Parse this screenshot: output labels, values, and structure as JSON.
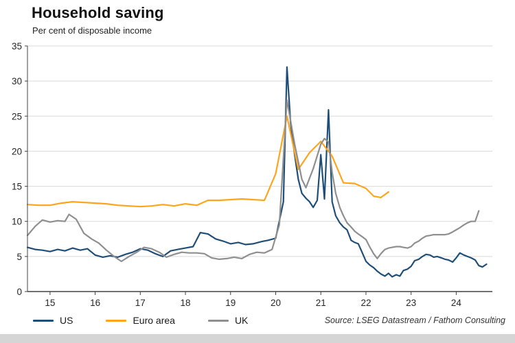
{
  "page": {
    "title": "Household saving",
    "subtitle": "Per cent of disposable income",
    "source": "Source: LSEG Datastream / Fathom Consulting"
  },
  "chart_data": {
    "type": "line",
    "title": "Household saving",
    "ylabel": "Per cent of disposable income",
    "x_domain": [
      2014.5,
      2024.8
    ],
    "ylim": [
      0,
      35
    ],
    "y_ticks": [
      0,
      5,
      10,
      15,
      20,
      25,
      30,
      35
    ],
    "x_ticks": [
      {
        "value": 2015,
        "label": "15"
      },
      {
        "value": 2016,
        "label": "16"
      },
      {
        "value": 2017,
        "label": "17"
      },
      {
        "value": 2018,
        "label": "18"
      },
      {
        "value": 2019,
        "label": "19"
      },
      {
        "value": 2020,
        "label": "20"
      },
      {
        "value": 2021,
        "label": "21"
      },
      {
        "value": 2022,
        "label": "22"
      },
      {
        "value": 2023,
        "label": "23"
      },
      {
        "value": 2024,
        "label": "24"
      }
    ],
    "grid": "horizontal",
    "legend_position": "bottom-left",
    "grid_color": "#d9d9d9",
    "axis_color": "#404040",
    "series": [
      {
        "name": "US",
        "color": "#1f4e79",
        "x": [
          2014.5,
          2014.67,
          2014.83,
          2015.0,
          2015.17,
          2015.33,
          2015.5,
          2015.67,
          2015.83,
          2016.0,
          2016.17,
          2016.33,
          2016.5,
          2016.67,
          2016.83,
          2017.0,
          2017.17,
          2017.33,
          2017.5,
          2017.67,
          2017.83,
          2018.0,
          2018.17,
          2018.33,
          2018.5,
          2018.67,
          2018.83,
          2019.0,
          2019.17,
          2019.33,
          2019.5,
          2019.67,
          2019.83,
          2020.0,
          2020.17,
          2020.25,
          2020.33,
          2020.42,
          2020.5,
          2020.58,
          2020.67,
          2020.75,
          2020.83,
          2020.92,
          2021.0,
          2021.08,
          2021.17,
          2021.25,
          2021.33,
          2021.42,
          2021.5,
          2021.58,
          2021.67,
          2021.75,
          2021.83,
          2021.92,
          2022.0,
          2022.08,
          2022.17,
          2022.25,
          2022.33,
          2022.42,
          2022.5,
          2022.58,
          2022.67,
          2022.75,
          2022.83,
          2022.92,
          2023.0,
          2023.08,
          2023.17,
          2023.25,
          2023.33,
          2023.42,
          2023.5,
          2023.58,
          2023.67,
          2023.75,
          2023.83,
          2023.92,
          2024.0,
          2024.08,
          2024.17,
          2024.25,
          2024.33,
          2024.42,
          2024.5,
          2024.58,
          2024.67
        ],
        "values": [
          6.3,
          6.0,
          5.9,
          5.7,
          6.0,
          5.8,
          6.2,
          5.9,
          6.1,
          5.2,
          4.9,
          5.1,
          4.9,
          5.3,
          5.6,
          6.1,
          5.9,
          5.4,
          5.0,
          5.8,
          6.0,
          6.2,
          6.4,
          8.4,
          8.2,
          7.5,
          7.2,
          6.8,
          7.0,
          6.7,
          6.8,
          7.1,
          7.3,
          7.6,
          12.8,
          32.0,
          24.0,
          19.5,
          16.0,
          14.0,
          13.3,
          12.8,
          12.0,
          13.0,
          19.5,
          13.2,
          25.9,
          12.8,
          10.8,
          9.8,
          9.2,
          8.8,
          7.3,
          7.0,
          6.8,
          5.5,
          4.3,
          3.8,
          3.4,
          2.9,
          2.5,
          2.2,
          2.6,
          2.1,
          2.4,
          2.2,
          3.0,
          3.2,
          3.6,
          4.4,
          4.6,
          5.0,
          5.3,
          5.2,
          4.9,
          5.0,
          4.8,
          4.6,
          4.5,
          4.2,
          4.8,
          5.5,
          5.2,
          5.0,
          4.8,
          4.5,
          3.7,
          3.5,
          3.9
        ]
      },
      {
        "name": "Euro area",
        "color": "#ffa41b",
        "x": [
          2014.5,
          2014.75,
          2015.0,
          2015.25,
          2015.5,
          2015.75,
          2016.0,
          2016.25,
          2016.5,
          2016.75,
          2017.0,
          2017.25,
          2017.5,
          2017.75,
          2018.0,
          2018.25,
          2018.5,
          2018.75,
          2019.0,
          2019.25,
          2019.5,
          2019.75,
          2020.0,
          2020.25,
          2020.5,
          2020.75,
          2021.0,
          2021.25,
          2021.5,
          2021.75,
          2022.0,
          2022.17,
          2022.33,
          2022.5
        ],
        "values": [
          12.4,
          12.3,
          12.3,
          12.6,
          12.8,
          12.7,
          12.6,
          12.5,
          12.3,
          12.2,
          12.1,
          12.2,
          12.4,
          12.2,
          12.5,
          12.3,
          13.0,
          13.0,
          13.1,
          13.2,
          13.1,
          13.0,
          16.8,
          25.0,
          17.4,
          19.8,
          21.4,
          19.3,
          15.5,
          15.4,
          14.7,
          13.6,
          13.4,
          14.2
        ]
      },
      {
        "name": "UK",
        "color": "#8f8f8f",
        "x": [
          2014.5,
          2014.67,
          2014.83,
          2015.0,
          2015.17,
          2015.33,
          2015.42,
          2015.58,
          2015.75,
          2015.92,
          2016.08,
          2016.25,
          2016.42,
          2016.58,
          2016.75,
          2016.92,
          2017.08,
          2017.25,
          2017.42,
          2017.58,
          2017.75,
          2017.92,
          2018.08,
          2018.25,
          2018.42,
          2018.58,
          2018.75,
          2018.92,
          2019.08,
          2019.25,
          2019.42,
          2019.58,
          2019.75,
          2019.92,
          2020.08,
          2020.25,
          2020.42,
          2020.58,
          2020.67,
          2020.83,
          2021.0,
          2021.08,
          2021.17,
          2021.25,
          2021.33,
          2021.42,
          2021.5,
          2021.58,
          2021.67,
          2021.75,
          2021.83,
          2021.92,
          2022.0,
          2022.08,
          2022.17,
          2022.25,
          2022.33,
          2022.42,
          2022.5,
          2022.58,
          2022.67,
          2022.75,
          2022.83,
          2022.92,
          2023.0,
          2023.08,
          2023.17,
          2023.25,
          2023.33,
          2023.42,
          2023.5,
          2023.58,
          2023.67,
          2023.75,
          2023.83,
          2023.92,
          2024.0,
          2024.08,
          2024.17,
          2024.25,
          2024.33,
          2024.42,
          2024.5
        ],
        "values": [
          8.0,
          9.3,
          10.2,
          9.9,
          10.1,
          10.0,
          11.0,
          10.3,
          8.3,
          7.5,
          6.9,
          5.9,
          5.0,
          4.3,
          5.0,
          5.6,
          6.3,
          6.1,
          5.6,
          4.9,
          5.3,
          5.6,
          5.5,
          5.5,
          5.4,
          4.8,
          4.6,
          4.7,
          4.9,
          4.7,
          5.3,
          5.6,
          5.5,
          6.0,
          9.5,
          27.3,
          21.0,
          16.0,
          14.8,
          17.5,
          21.0,
          21.8,
          21.3,
          17.0,
          14.0,
          12.0,
          10.8,
          9.8,
          9.2,
          8.6,
          8.2,
          7.8,
          7.4,
          6.4,
          5.4,
          4.7,
          5.4,
          6.0,
          6.2,
          6.3,
          6.4,
          6.4,
          6.3,
          6.2,
          6.4,
          6.9,
          7.2,
          7.6,
          7.9,
          8.0,
          8.1,
          8.1,
          8.1,
          8.1,
          8.2,
          8.5,
          8.8,
          9.1,
          9.5,
          9.8,
          10.0,
          10.0,
          11.5
        ]
      }
    ]
  }
}
